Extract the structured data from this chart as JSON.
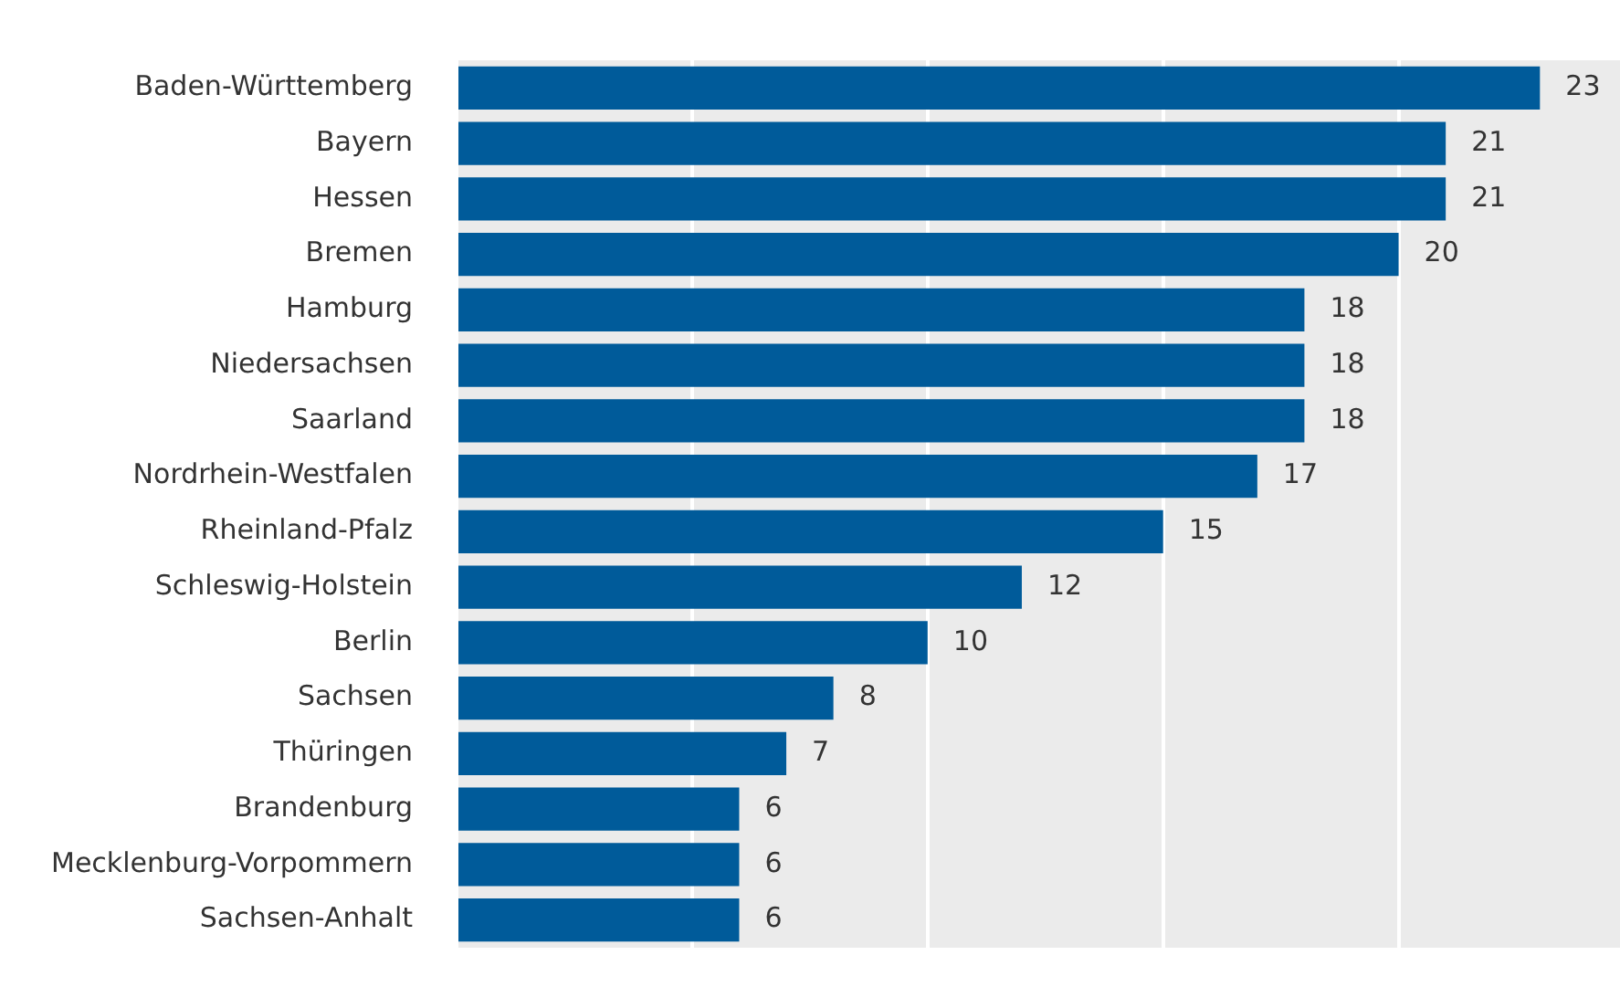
{
  "chart_data": {
    "type": "bar",
    "orientation": "horizontal",
    "categories": [
      "Baden-Württemberg",
      "Bayern",
      "Hessen",
      "Bremen",
      "Hamburg",
      "Niedersachsen",
      "Saarland",
      "Nordrhein-Westfalen",
      "Rheinland-Pfalz",
      "Schleswig-Holstein",
      "Berlin",
      "Sachsen",
      "Thüringen",
      "Brandenburg",
      "Mecklenburg-Vorpommern",
      "Sachsen-Anhalt"
    ],
    "values": [
      23,
      21,
      21,
      20,
      18,
      18,
      18,
      17,
      15,
      12,
      10,
      8,
      7,
      6,
      6,
      6
    ],
    "color": "#005b9a",
    "xlim": [
      0,
      24.7
    ],
    "xticks": [
      {
        "value": 0,
        "label": null
      },
      {
        "value": 5,
        "label": null
      },
      {
        "value": 10,
        "label": null
      },
      {
        "value": 15,
        "label": null
      },
      {
        "value": 20,
        "label": null
      }
    ],
    "tick_labels": "y",
    "grid": "x",
    "data_labels": true,
    "legend": false
  }
}
